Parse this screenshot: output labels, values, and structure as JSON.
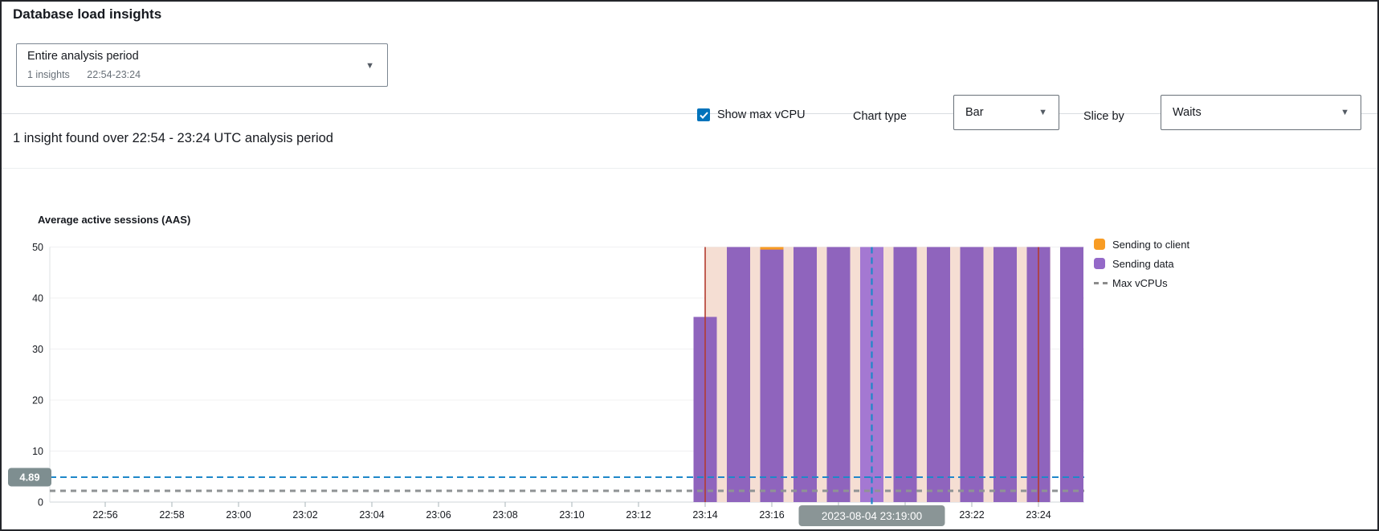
{
  "header": {
    "title": "Database load insights"
  },
  "controls": {
    "period_dropdown": {
      "value": "Entire analysis period",
      "insights_count": "1 insights",
      "range": "22:54-23:24"
    },
    "show_max_vcpu": {
      "label": "Show max vCPU",
      "checked": true
    },
    "chart_type": {
      "label": "Chart type",
      "value": "Bar"
    },
    "slice_by": {
      "label": "Slice by",
      "value": "Waits"
    }
  },
  "insight_summary": "1 insight found over 22:54 - 23:24 UTC analysis period",
  "colors": {
    "accent_blue": "#0073bb",
    "marker_blue": "#1f88c9",
    "bar_purple": "#8f64bd",
    "bar_purple_selected": "#a478d2",
    "bar_orange": "#f89c24",
    "insight_band_pink": "#f4dcd1",
    "insight_boundary_red": "#b23b30",
    "max_vcpu_gray": "#8f9394",
    "badge_gray": "#7e8e90",
    "tooltip_gray": "#8a9596"
  },
  "chart_data": {
    "type": "bar",
    "title": "Average active sessions (AAS)",
    "xlabel": "",
    "ylabel": "Average active sessions (AAS)",
    "ylim": [
      0,
      50
    ],
    "y_ticks": [
      0,
      10,
      20,
      30,
      40,
      50
    ],
    "x_ticks": [
      "22:56",
      "22:58",
      "23:00",
      "23:02",
      "23:04",
      "23:06",
      "23:08",
      "23:10",
      "23:12",
      "23:14",
      "23:16",
      "23:18",
      "23:20",
      "23:22",
      "23:24"
    ],
    "x_range": [
      "22:54",
      "23:25"
    ],
    "grid": true,
    "legend_position": "top-right",
    "x": [
      "23:14",
      "23:15",
      "23:16",
      "23:17",
      "23:18",
      "23:19",
      "23:20",
      "23:21",
      "23:22",
      "23:23",
      "23:24",
      "23:25"
    ],
    "series": [
      {
        "name": "Sending to client",
        "color": "#f89c24",
        "values": [
          0,
          0,
          0.5,
          0,
          0,
          0,
          0,
          0,
          0,
          0,
          0,
          0
        ]
      },
      {
        "name": "Sending data",
        "color": "#8f64bd",
        "values": [
          36.3,
          50,
          50,
          50,
          50,
          50,
          50,
          50,
          50,
          50,
          50,
          50
        ]
      }
    ],
    "values_clipped_at_ymax": true,
    "max_vcpus": 2.2,
    "avg_load_marker": {
      "value": 4.89,
      "label": "4.89"
    },
    "time_marker": {
      "time": "23:19",
      "label": "2023-08-04 23:19:00"
    },
    "insight_region": {
      "start": "23:14",
      "end": "23:24"
    },
    "selected_bar": "23:19",
    "legend": [
      {
        "label": "Sending to client",
        "color": "#f89c24",
        "type": "square"
      },
      {
        "label": "Sending data",
        "color": "#9469c8",
        "type": "square"
      },
      {
        "label": "Max vCPUs",
        "color": "#8c8c8c",
        "type": "dashed-line"
      }
    ]
  }
}
